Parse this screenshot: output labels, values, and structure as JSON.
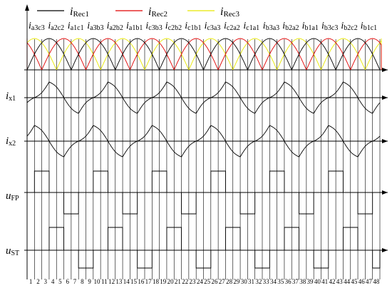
{
  "legend": [
    {
      "name": "i",
      "sub": "Rec1",
      "color": "#000000"
    },
    {
      "name": "i",
      "sub": "Rec2",
      "color": "#e00000"
    },
    {
      "name": "i",
      "sub": "Rec3",
      "color": "#e8e800"
    }
  ],
  "top_labels": [
    {
      "name": "i",
      "sub": "a3c3"
    },
    {
      "name": "i",
      "sub": "a2c2"
    },
    {
      "name": "i",
      "sub": "a1c1"
    },
    {
      "name": "i",
      "sub": "a3b3"
    },
    {
      "name": "i",
      "sub": "a2b2"
    },
    {
      "name": "i",
      "sub": "a1b1"
    },
    {
      "name": "i",
      "sub": "c3b3"
    },
    {
      "name": "i",
      "sub": "c2b2"
    },
    {
      "name": "i",
      "sub": "c1b1"
    },
    {
      "name": "i",
      "sub": "c3a3"
    },
    {
      "name": "i",
      "sub": "c2a2"
    },
    {
      "name": "i",
      "sub": "c1a1"
    },
    {
      "name": "i",
      "sub": "b3a3"
    },
    {
      "name": "i",
      "sub": "b2a2"
    },
    {
      "name": "i",
      "sub": "b1a1"
    },
    {
      "name": "i",
      "sub": "b3c3"
    },
    {
      "name": "i",
      "sub": "b2c2"
    },
    {
      "name": "i",
      "sub": "b1c1"
    }
  ],
  "row_labels": [
    {
      "name": "i",
      "sub": "x1"
    },
    {
      "name": "i",
      "sub": "x2"
    },
    {
      "name": "u",
      "sub": "FP"
    },
    {
      "name": "u",
      "sub": "ST"
    }
  ],
  "intervals": [
    "1",
    "2",
    "3",
    "4",
    "5",
    "6",
    "7",
    "8",
    "9",
    "10",
    "11",
    "12",
    "13",
    "14",
    "15",
    "16",
    "17",
    "18",
    "19",
    "20",
    "21",
    "22",
    "23",
    "24",
    "25",
    "26",
    "27",
    "28",
    "29",
    "30",
    "31",
    "32",
    "33",
    "34",
    "35",
    "36",
    "37",
    "38",
    "39",
    "40",
    "41",
    "42",
    "43",
    "44",
    "45",
    "46",
    "47",
    "48"
  ],
  "colors": {
    "rec1": "#000000",
    "rec2": "#e00000",
    "rec3": "#e8e800",
    "axis": "#000000",
    "grid": "#000000"
  }
}
